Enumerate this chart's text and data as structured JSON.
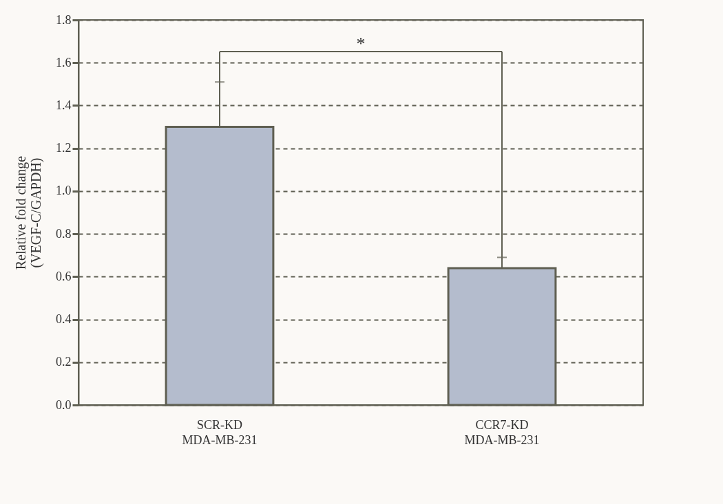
{
  "chart_data": {
    "type": "bar",
    "categories": [
      "SCR-KD\nMDA-MB-231",
      "CCR7-KD\nMDA-MB-231"
    ],
    "values": [
      1.3,
      0.64
    ],
    "errors": [
      [
        1.3,
        1.51
      ],
      [
        0.64,
        0.69
      ]
    ],
    "color": "#b4bccd",
    "ylabel": "Relative fold change\n(VEGF-C/GAPDH)",
    "ylim": [
      0,
      1.8
    ],
    "yticks": [
      {
        "value": 0,
        "label": "0.0"
      },
      {
        "value": 0.2,
        "label": "0.2"
      },
      {
        "value": 0.4,
        "label": "0.4"
      },
      {
        "value": 0.6,
        "label": "0.6"
      },
      {
        "value": 0.8,
        "label": "0.8"
      },
      {
        "value": 1.0,
        "label": "1.0"
      },
      {
        "value": 1.2,
        "label": "1.2"
      },
      {
        "value": 1.4,
        "label": "1.4"
      },
      {
        "value": 1.6,
        "label": "1.6"
      },
      {
        "value": 1.8,
        "label": "1.8"
      }
    ],
    "grid": true,
    "line_style": "dashed",
    "annotations": [
      "*"
    ]
  }
}
